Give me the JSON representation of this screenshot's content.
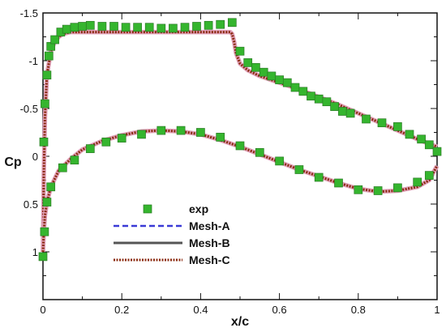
{
  "chart_data": {
    "type": "line",
    "title": "",
    "xlabel": "x/c",
    "ylabel": "Cp",
    "xlim": [
      0,
      1
    ],
    "ylim": [
      -1.5,
      1.5
    ],
    "y_inverted": true,
    "grid": false,
    "legend_position": "lower-left",
    "x_ticks": [
      0,
      0.2,
      0.4,
      0.6,
      0.8,
      1
    ],
    "x_tick_labels": [
      "0",
      "0.2",
      "0.4",
      "0.6",
      "0.8",
      "1"
    ],
    "y_ticks": [
      -1.5,
      -1,
      -0.5,
      0,
      0.5,
      1
    ],
    "y_tick_labels": [
      "-1.5",
      "-1",
      "-0.5",
      "0",
      "0.5",
      "1"
    ],
    "series": [
      {
        "name": "exp",
        "kind": "scatter",
        "marker": "square",
        "color": "#35b52e",
        "x": [
          0.002,
          0.005,
          0.01,
          0.015,
          0.02,
          0.03,
          0.045,
          0.06,
          0.08,
          0.1,
          0.12,
          0.15,
          0.18,
          0.21,
          0.24,
          0.27,
          0.3,
          0.33,
          0.36,
          0.39,
          0.42,
          0.45,
          0.48,
          0.5,
          0.52,
          0.54,
          0.56,
          0.58,
          0.6,
          0.62,
          0.64,
          0.66,
          0.68,
          0.7,
          0.72,
          0.74,
          0.76,
          0.78,
          0.82,
          0.86,
          0.9,
          0.93,
          0.96,
          0.98,
          1.0,
          0.0,
          0.004,
          0.01,
          0.02,
          0.05,
          0.08,
          0.12,
          0.16,
          0.2,
          0.25,
          0.3,
          0.35,
          0.4,
          0.45,
          0.5,
          0.55,
          0.6,
          0.65,
          0.7,
          0.75,
          0.8,
          0.85,
          0.9,
          0.95,
          0.98
        ],
        "y": [
          -0.15,
          -0.55,
          -0.85,
          -1.05,
          -1.15,
          -1.22,
          -1.3,
          -1.33,
          -1.35,
          -1.36,
          -1.37,
          -1.36,
          -1.36,
          -1.35,
          -1.35,
          -1.35,
          -1.34,
          -1.34,
          -1.35,
          -1.36,
          -1.37,
          -1.38,
          -1.4,
          -1.1,
          -0.98,
          -0.93,
          -0.88,
          -0.84,
          -0.8,
          -0.77,
          -0.72,
          -0.68,
          -0.63,
          -0.6,
          -0.57,
          -0.52,
          -0.47,
          -0.45,
          -0.39,
          -0.35,
          -0.31,
          -0.23,
          -0.18,
          -0.12,
          -0.05,
          1.05,
          0.79,
          0.48,
          0.32,
          0.12,
          0.04,
          -0.08,
          -0.15,
          -0.19,
          -0.23,
          -0.27,
          -0.27,
          -0.25,
          -0.2,
          -0.11,
          -0.04,
          0.05,
          0.14,
          0.22,
          0.28,
          0.35,
          0.36,
          0.33,
          0.27,
          0.2
        ]
      },
      {
        "name": "Mesh-A",
        "kind": "line",
        "style": "dashed",
        "color": "#3a3ad6",
        "upper": {
          "x": [
            0.0,
            0.002,
            0.005,
            0.01,
            0.02,
            0.03,
            0.04,
            0.05,
            0.07,
            0.1,
            0.15,
            0.2,
            0.25,
            0.3,
            0.35,
            0.4,
            0.44,
            0.46,
            0.47,
            0.475,
            0.48,
            0.485,
            0.49,
            0.5,
            0.52,
            0.55,
            0.6,
            0.65,
            0.7,
            0.75,
            0.8,
            0.85,
            0.9,
            0.95,
            0.98,
            1.0
          ],
          "y": [
            1.0,
            0.2,
            -0.4,
            -0.85,
            -1.1,
            -1.2,
            -1.25,
            -1.28,
            -1.3,
            -1.3,
            -1.3,
            -1.3,
            -1.3,
            -1.3,
            -1.3,
            -1.3,
            -1.3,
            -1.3,
            -1.3,
            -1.3,
            -1.28,
            -1.2,
            -1.08,
            -0.97,
            -0.9,
            -0.84,
            -0.77,
            -0.7,
            -0.62,
            -0.54,
            -0.45,
            -0.36,
            -0.27,
            -0.18,
            -0.13,
            -0.1
          ]
        },
        "lower": {
          "x": [
            0.0,
            0.002,
            0.005,
            0.01,
            0.02,
            0.04,
            0.07,
            0.1,
            0.15,
            0.2,
            0.25,
            0.3,
            0.35,
            0.4,
            0.45,
            0.5,
            0.55,
            0.6,
            0.65,
            0.7,
            0.75,
            0.8,
            0.85,
            0.9,
            0.95,
            0.98,
            1.0
          ],
          "y": [
            1.0,
            0.8,
            0.62,
            0.48,
            0.32,
            0.15,
            0.03,
            -0.07,
            -0.16,
            -0.22,
            -0.26,
            -0.27,
            -0.26,
            -0.23,
            -0.17,
            -0.1,
            -0.02,
            0.06,
            0.14,
            0.21,
            0.28,
            0.34,
            0.37,
            0.36,
            0.32,
            0.25,
            0.1
          ]
        }
      },
      {
        "name": "Mesh-B",
        "kind": "line",
        "style": "solid",
        "color": "#555555",
        "upper": {
          "x": [
            0.0,
            0.002,
            0.005,
            0.01,
            0.02,
            0.03,
            0.04,
            0.05,
            0.07,
            0.1,
            0.15,
            0.2,
            0.25,
            0.3,
            0.35,
            0.4,
            0.44,
            0.46,
            0.47,
            0.475,
            0.48,
            0.485,
            0.49,
            0.5,
            0.52,
            0.55,
            0.6,
            0.65,
            0.7,
            0.75,
            0.8,
            0.85,
            0.9,
            0.95,
            0.98,
            1.0
          ],
          "y": [
            1.0,
            0.2,
            -0.4,
            -0.85,
            -1.1,
            -1.2,
            -1.25,
            -1.28,
            -1.3,
            -1.3,
            -1.3,
            -1.3,
            -1.3,
            -1.3,
            -1.3,
            -1.3,
            -1.3,
            -1.3,
            -1.3,
            -1.3,
            -1.28,
            -1.2,
            -1.08,
            -0.97,
            -0.9,
            -0.84,
            -0.77,
            -0.7,
            -0.62,
            -0.54,
            -0.45,
            -0.36,
            -0.27,
            -0.18,
            -0.13,
            -0.1
          ]
        },
        "lower": {
          "x": [
            0.0,
            0.002,
            0.005,
            0.01,
            0.02,
            0.04,
            0.07,
            0.1,
            0.15,
            0.2,
            0.25,
            0.3,
            0.35,
            0.4,
            0.45,
            0.5,
            0.55,
            0.6,
            0.65,
            0.7,
            0.75,
            0.8,
            0.85,
            0.9,
            0.95,
            0.98,
            1.0
          ],
          "y": [
            1.0,
            0.8,
            0.62,
            0.48,
            0.32,
            0.15,
            0.03,
            -0.07,
            -0.16,
            -0.22,
            -0.26,
            -0.27,
            -0.26,
            -0.23,
            -0.17,
            -0.1,
            -0.02,
            0.06,
            0.14,
            0.21,
            0.28,
            0.34,
            0.37,
            0.36,
            0.32,
            0.25,
            0.1
          ]
        }
      },
      {
        "name": "Mesh-C",
        "kind": "line",
        "style": "dotted",
        "color": "#8b2b10",
        "halo_color": "#e0a0b8",
        "upper": {
          "x": [
            0.0,
            0.002,
            0.005,
            0.01,
            0.02,
            0.03,
            0.04,
            0.05,
            0.07,
            0.1,
            0.15,
            0.2,
            0.25,
            0.3,
            0.35,
            0.4,
            0.44,
            0.46,
            0.47,
            0.475,
            0.48,
            0.485,
            0.49,
            0.5,
            0.52,
            0.55,
            0.6,
            0.65,
            0.7,
            0.75,
            0.8,
            0.85,
            0.9,
            0.95,
            0.98,
            1.0
          ],
          "y": [
            1.0,
            0.2,
            -0.4,
            -0.85,
            -1.1,
            -1.2,
            -1.25,
            -1.28,
            -1.3,
            -1.3,
            -1.3,
            -1.3,
            -1.3,
            -1.3,
            -1.3,
            -1.3,
            -1.3,
            -1.3,
            -1.3,
            -1.3,
            -1.28,
            -1.2,
            -1.08,
            -0.97,
            -0.9,
            -0.84,
            -0.77,
            -0.7,
            -0.62,
            -0.54,
            -0.45,
            -0.36,
            -0.27,
            -0.18,
            -0.13,
            -0.1
          ]
        },
        "lower": {
          "x": [
            0.0,
            0.002,
            0.005,
            0.01,
            0.02,
            0.04,
            0.07,
            0.1,
            0.15,
            0.2,
            0.25,
            0.3,
            0.35,
            0.4,
            0.45,
            0.5,
            0.55,
            0.6,
            0.65,
            0.7,
            0.75,
            0.8,
            0.85,
            0.9,
            0.95,
            0.98,
            1.0
          ],
          "y": [
            1.0,
            0.8,
            0.62,
            0.48,
            0.32,
            0.15,
            0.03,
            -0.07,
            -0.16,
            -0.22,
            -0.26,
            -0.27,
            -0.26,
            -0.23,
            -0.17,
            -0.1,
            -0.02,
            0.06,
            0.14,
            0.21,
            0.28,
            0.34,
            0.37,
            0.36,
            0.32,
            0.25,
            0.1
          ]
        }
      }
    ]
  }
}
